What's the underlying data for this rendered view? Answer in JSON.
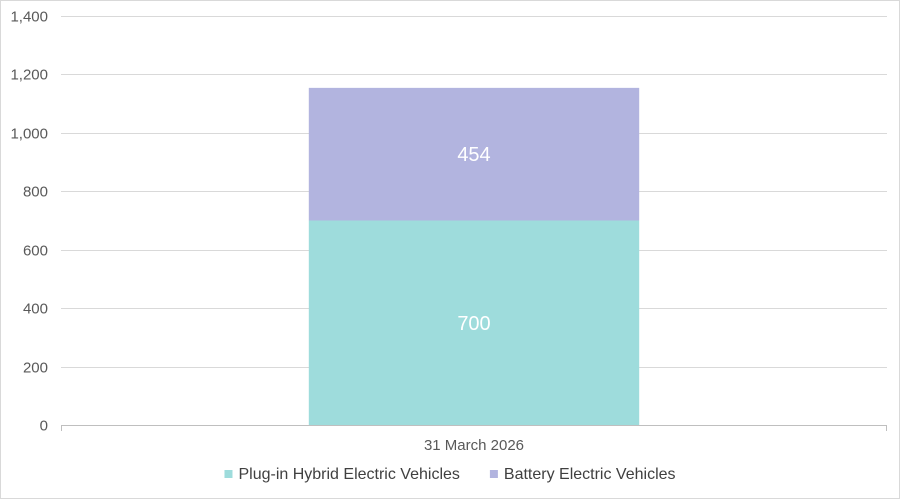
{
  "chart_data": {
    "type": "bar",
    "stacked": true,
    "categories": [
      "31 March 2026"
    ],
    "series": [
      {
        "name": "Plug-in Hybrid Electric Vehicles",
        "values": [
          700
        ],
        "color": "#9edcdc"
      },
      {
        "name": "Battery Electric Vehicles",
        "values": [
          454
        ],
        "color": "#b2b4df"
      }
    ],
    "ylim": [
      0,
      1400
    ],
    "yticks": [
      0,
      200,
      400,
      600,
      800,
      1000,
      1200,
      1400
    ],
    "ytick_labels": [
      "0",
      "200",
      "400",
      "600",
      "800",
      "1,000",
      "1,200",
      "1,400"
    ],
    "grid": true,
    "legend": "bottom"
  }
}
